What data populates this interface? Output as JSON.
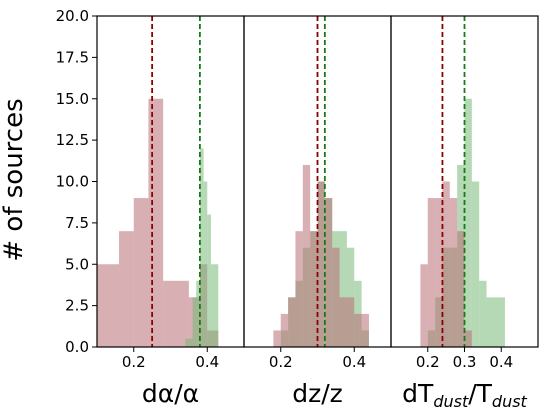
{
  "chart_data": {
    "type": "bar",
    "ylabel": "# of sources",
    "ylim": [
      0,
      20
    ],
    "yticks": [
      "0.0",
      "2.5",
      "5.0",
      "7.5",
      "10.0",
      "12.5",
      "15.0",
      "17.5",
      "20.0"
    ],
    "colors": {
      "red": "#b86e75",
      "green": "#78b878",
      "red_line": "#8b0000",
      "green_line": "#1a7a1a"
    },
    "panels": [
      {
        "xlabel_main": "dα/α",
        "xlim": [
          0.1,
          0.5
        ],
        "xticks": [
          "0.2",
          "0.4"
        ],
        "series": [
          {
            "color": "red",
            "bins": [
              [
                0.1,
                0.16,
                5
              ],
              [
                0.16,
                0.2,
                7
              ],
              [
                0.2,
                0.24,
                9
              ],
              [
                0.24,
                0.28,
                15
              ],
              [
                0.28,
                0.35,
                4
              ],
              [
                0.35,
                0.38,
                3
              ],
              [
                0.38,
                0.4,
                5
              ],
              [
                0.4,
                0.43,
                1
              ]
            ]
          },
          {
            "color": "green",
            "bins": [
              [
                0.34,
                0.36,
                0.5
              ],
              [
                0.36,
                0.37,
                3
              ],
              [
                0.37,
                0.38,
                4
              ],
              [
                0.38,
                0.39,
                12
              ],
              [
                0.39,
                0.4,
                10
              ],
              [
                0.4,
                0.41,
                8
              ],
              [
                0.41,
                0.43,
                5
              ]
            ]
          }
        ],
        "vlines": [
          {
            "x": 0.25,
            "color": "red"
          },
          {
            "x": 0.38,
            "color": "green"
          }
        ]
      },
      {
        "xlabel_main": "dz/z",
        "xlim": [
          0.1,
          0.5
        ],
        "xticks": [
          "0.2",
          "0.4"
        ],
        "series": [
          {
            "color": "green",
            "bins": [
              [
                0.2,
                0.22,
                1
              ],
              [
                0.22,
                0.24,
                3
              ],
              [
                0.24,
                0.26,
                4
              ],
              [
                0.26,
                0.28,
                6
              ],
              [
                0.28,
                0.3,
                7
              ],
              [
                0.3,
                0.32,
                10
              ],
              [
                0.32,
                0.34,
                9
              ],
              [
                0.34,
                0.36,
                7
              ],
              [
                0.36,
                0.38,
                7
              ],
              [
                0.38,
                0.4,
                6
              ],
              [
                0.4,
                0.42,
                4
              ],
              [
                0.42,
                0.44,
                1
              ]
            ]
          },
          {
            "color": "red",
            "bins": [
              [
                0.18,
                0.2,
                1
              ],
              [
                0.2,
                0.22,
                2
              ],
              [
                0.22,
                0.24,
                3
              ],
              [
                0.24,
                0.26,
                7
              ],
              [
                0.26,
                0.28,
                11
              ],
              [
                0.28,
                0.3,
                7
              ],
              [
                0.3,
                0.32,
                10
              ],
              [
                0.32,
                0.34,
                9
              ],
              [
                0.34,
                0.36,
                6
              ],
              [
                0.36,
                0.38,
                3
              ],
              [
                0.38,
                0.4,
                3
              ],
              [
                0.4,
                0.42,
                2
              ],
              [
                0.42,
                0.44,
                2
              ]
            ]
          }
        ],
        "vlines": [
          {
            "x": 0.3,
            "color": "red"
          },
          {
            "x": 0.32,
            "color": "green"
          }
        ]
      },
      {
        "xlabel_main": "dT",
        "xlabel_sub1": "dust",
        "xlabel_mid": "/T",
        "xlabel_sub2": "dust",
        "xlim": [
          0.1,
          0.5
        ],
        "xticks": [
          "0.2",
          "0.3",
          "0.4"
        ],
        "series": [
          {
            "color": "green",
            "bins": [
              [
                0.2,
                0.22,
                1
              ],
              [
                0.22,
                0.24,
                3
              ],
              [
                0.24,
                0.26,
                6
              ],
              [
                0.26,
                0.28,
                6
              ],
              [
                0.28,
                0.3,
                11
              ],
              [
                0.3,
                0.32,
                15
              ],
              [
                0.32,
                0.34,
                10
              ],
              [
                0.34,
                0.36,
                4
              ],
              [
                0.36,
                0.41,
                3
              ]
            ]
          },
          {
            "color": "red",
            "bins": [
              [
                0.18,
                0.2,
                5
              ],
              [
                0.2,
                0.22,
                9
              ],
              [
                0.22,
                0.24,
                9
              ],
              [
                0.24,
                0.26,
                10
              ],
              [
                0.26,
                0.28,
                9
              ],
              [
                0.28,
                0.3,
                7
              ],
              [
                0.3,
                0.32,
                1
              ]
            ]
          }
        ],
        "vlines": [
          {
            "x": 0.24,
            "color": "red"
          },
          {
            "x": 0.3,
            "color": "green"
          }
        ]
      }
    ]
  }
}
